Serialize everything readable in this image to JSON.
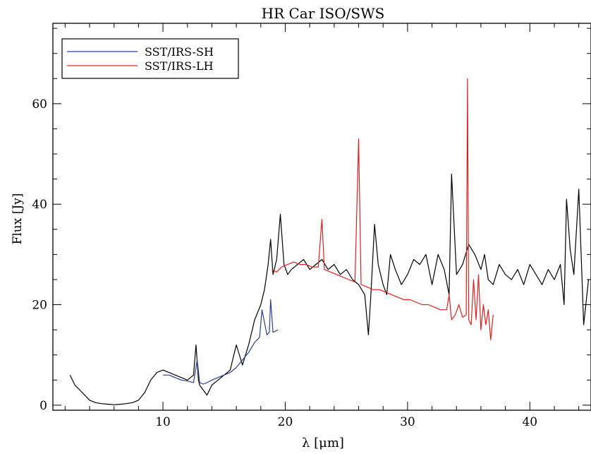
{
  "chart_data": {
    "type": "line",
    "title": "HR Car ISO/SWS",
    "xlabel": "λ [μm]",
    "ylabel": "Flux [Jy]",
    "xlim": [
      1,
      45
    ],
    "ylim": [
      -1,
      76
    ],
    "xticks": [
      10,
      20,
      30,
      40
    ],
    "yticks": [
      0,
      20,
      40,
      60
    ],
    "grid": false,
    "legend_position": "top-left",
    "legend": [
      {
        "label": "SST/IRS-SH",
        "color": "#2c3f8f"
      },
      {
        "label": "SST/IRS-LH",
        "color": "#e02020"
      }
    ],
    "series": [
      {
        "name": "ISO/SWS",
        "color": "#000000",
        "x": [
          2.4,
          2.8,
          3.2,
          3.6,
          4.0,
          4.5,
          5.0,
          5.5,
          6.0,
          6.5,
          7.0,
          7.5,
          8.0,
          8.5,
          9.0,
          9.5,
          10.0,
          10.5,
          11.0,
          11.5,
          12.0,
          12.5,
          12.7,
          12.9,
          13.0,
          13.3,
          13.6,
          14.0,
          14.5,
          15.0,
          15.5,
          15.8,
          16.0,
          16.5,
          17.0,
          17.3,
          17.5,
          18.0,
          18.3,
          18.6,
          18.8,
          19.0,
          19.3,
          19.6,
          19.9,
          20.2,
          20.5,
          21.0,
          21.5,
          22.0,
          22.5,
          23.0,
          23.5,
          24.0,
          24.5,
          25.0,
          25.5,
          26.0,
          26.5,
          26.8,
          27.0,
          27.3,
          27.6,
          28.0,
          28.3,
          28.6,
          29.0,
          29.5,
          30.0,
          30.5,
          31.0,
          31.5,
          32.0,
          32.5,
          33.0,
          33.4,
          33.6,
          34.0,
          34.5,
          35.0,
          35.5,
          36.0,
          36.3,
          36.6,
          37.0,
          37.5,
          38.0,
          38.5,
          39.0,
          39.5,
          40.0,
          40.5,
          41.0,
          41.5,
          42.0,
          42.5,
          42.8,
          43.0,
          43.3,
          43.6,
          44.0,
          44.4,
          44.8
        ],
        "y": [
          6.0,
          4.0,
          3.0,
          2.0,
          1.0,
          0.5,
          0.3,
          0.2,
          0.1,
          0.2,
          0.3,
          0.5,
          1.0,
          2.5,
          5.0,
          6.5,
          7.0,
          6.5,
          6.0,
          5.5,
          5.0,
          6.0,
          12.0,
          5.0,
          4.0,
          3.0,
          2.0,
          4.0,
          5.0,
          6.0,
          7.0,
          10.0,
          12.0,
          8.0,
          12.0,
          15.0,
          17.0,
          20.0,
          23.0,
          28.0,
          33.0,
          26.0,
          29.0,
          38.0,
          28.0,
          26.0,
          27.0,
          28.0,
          29.0,
          27.0,
          28.0,
          29.0,
          27.0,
          28.0,
          26.0,
          27.0,
          25.0,
          24.0,
          22.0,
          14.0,
          22.0,
          36.0,
          28.0,
          24.0,
          22.0,
          30.0,
          27.0,
          24.0,
          26.0,
          29.0,
          28.0,
          30.0,
          24.0,
          30.0,
          27.0,
          22.0,
          46.0,
          26.0,
          28.0,
          32.0,
          30.0,
          27.0,
          30.0,
          25.0,
          24.0,
          28.0,
          26.0,
          25.0,
          27.0,
          24.0,
          28.0,
          26.0,
          24.0,
          27.0,
          25.0,
          28.0,
          20.0,
          41.0,
          31.0,
          26.0,
          43.0,
          16.0,
          25.0
        ]
      },
      {
        "name": "SST/IRS-SH",
        "color": "#2c3f8f",
        "x": [
          10.0,
          10.5,
          11.0,
          11.5,
          12.0,
          12.5,
          12.8,
          13.0,
          13.3,
          13.6,
          14.0,
          14.5,
          15.0,
          15.5,
          16.0,
          16.5,
          17.0,
          17.5,
          17.9,
          18.1,
          18.5,
          18.7,
          18.8,
          19.0,
          19.4
        ],
        "y": [
          6.0,
          6.0,
          5.5,
          5.0,
          4.8,
          4.5,
          9.0,
          4.5,
          4.2,
          4.5,
          5.0,
          5.5,
          6.0,
          6.5,
          7.5,
          9.0,
          10.5,
          12.5,
          13.5,
          19.0,
          14.0,
          14.5,
          21.0,
          14.5,
          15.0
        ]
      },
      {
        "name": "SST/IRS-LH",
        "color": "#e02020",
        "x": [
          18.9,
          19.3,
          19.7,
          20.2,
          20.7,
          21.2,
          21.7,
          22.2,
          22.7,
          23.0,
          23.2,
          23.7,
          24.2,
          24.7,
          25.2,
          25.7,
          26.0,
          26.2,
          26.7,
          27.2,
          27.7,
          28.2,
          28.7,
          29.2,
          29.7,
          30.2,
          30.7,
          31.2,
          31.7,
          32.2,
          32.7,
          33.2,
          33.4,
          33.6,
          33.9,
          34.2,
          34.5,
          34.8,
          34.9,
          35.0,
          35.2,
          35.4,
          35.6,
          35.8,
          36.0,
          36.2,
          36.4,
          36.6,
          36.8,
          37.0
        ],
        "y": [
          27.0,
          26.5,
          27.5,
          28.0,
          28.5,
          28.0,
          28.0,
          27.5,
          27.5,
          37.0,
          27.0,
          26.5,
          26.0,
          25.5,
          25.0,
          24.5,
          53.0,
          24.0,
          23.5,
          23.0,
          23.0,
          22.5,
          22.0,
          21.5,
          21.0,
          21.0,
          20.5,
          20.0,
          20.0,
          19.5,
          19.0,
          19.0,
          22.0,
          17.0,
          18.0,
          20.0,
          17.5,
          18.0,
          65.0,
          17.0,
          16.0,
          25.0,
          17.0,
          26.0,
          15.0,
          20.0,
          16.0,
          19.0,
          13.0,
          18.0
        ]
      }
    ]
  }
}
